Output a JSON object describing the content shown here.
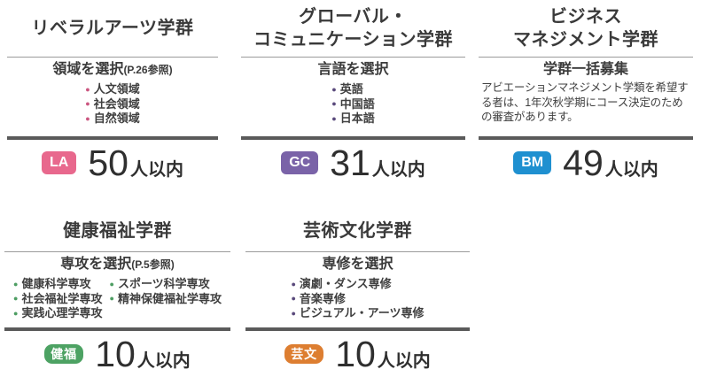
{
  "rules": {
    "thin_color": "#9b9b9b",
    "thick_color": "#5a5a5a"
  },
  "cards": [
    {
      "title": "リベラルアーツ学群",
      "subheader": "領域を選択",
      "subheader_note": "(P.26参照)",
      "bullet_color": "#cb5680",
      "bullets": [
        "人文領域",
        "社会領域",
        "自然領域"
      ],
      "badge": {
        "label": "LA",
        "color": "#e8688d"
      },
      "capacity": {
        "number": "50",
        "suffix": "人以内"
      }
    },
    {
      "title": "グローバル・\nコミュニケーション学群",
      "subheader": "言語を選択",
      "subheader_note": "",
      "bullet_color": "#5a4a7c",
      "bullets": [
        "英語",
        "中国語",
        "日本語"
      ],
      "badge": {
        "label": "GC",
        "color": "#7a63a8"
      },
      "capacity": {
        "number": "31",
        "suffix": "人以内"
      }
    },
    {
      "title": "ビジネス\nマネジメント学群",
      "subheader": "学群一括募集",
      "subheader_note": "",
      "note": "アビエーションマネジメント学類を希望する者は、1年次秋学期にコース決定のための審査があります。",
      "badge": {
        "label": "BM",
        "color": "#1f90d0"
      },
      "capacity": {
        "number": "49",
        "suffix": "人以内"
      }
    },
    {
      "title": "健康福祉学群",
      "subheader": "専攻を選択",
      "subheader_note": "(P.5参照)",
      "bullet_color": "#4e9e63",
      "bullet_columns": [
        [
          "健康科学専攻",
          "社会福祉学専攻",
          "実践心理学専攻"
        ],
        [
          "スポーツ科学専攻",
          "精神保健福祉学専攻"
        ]
      ],
      "badge": {
        "label": "健福",
        "color": "#4da263"
      },
      "capacity": {
        "number": "10",
        "suffix": "人以内"
      }
    },
    {
      "title": "芸術文化学群",
      "subheader": "専修を選択",
      "subheader_note": "",
      "bullet_color": "#5a4a7c",
      "bullets": [
        "演劇・ダンス専修",
        "音楽専修",
        "ビジュアル・アーツ専修"
      ],
      "badge": {
        "label": "芸文",
        "color": "#dd7e31"
      },
      "capacity": {
        "number": "10",
        "suffix": "人以内"
      }
    }
  ]
}
